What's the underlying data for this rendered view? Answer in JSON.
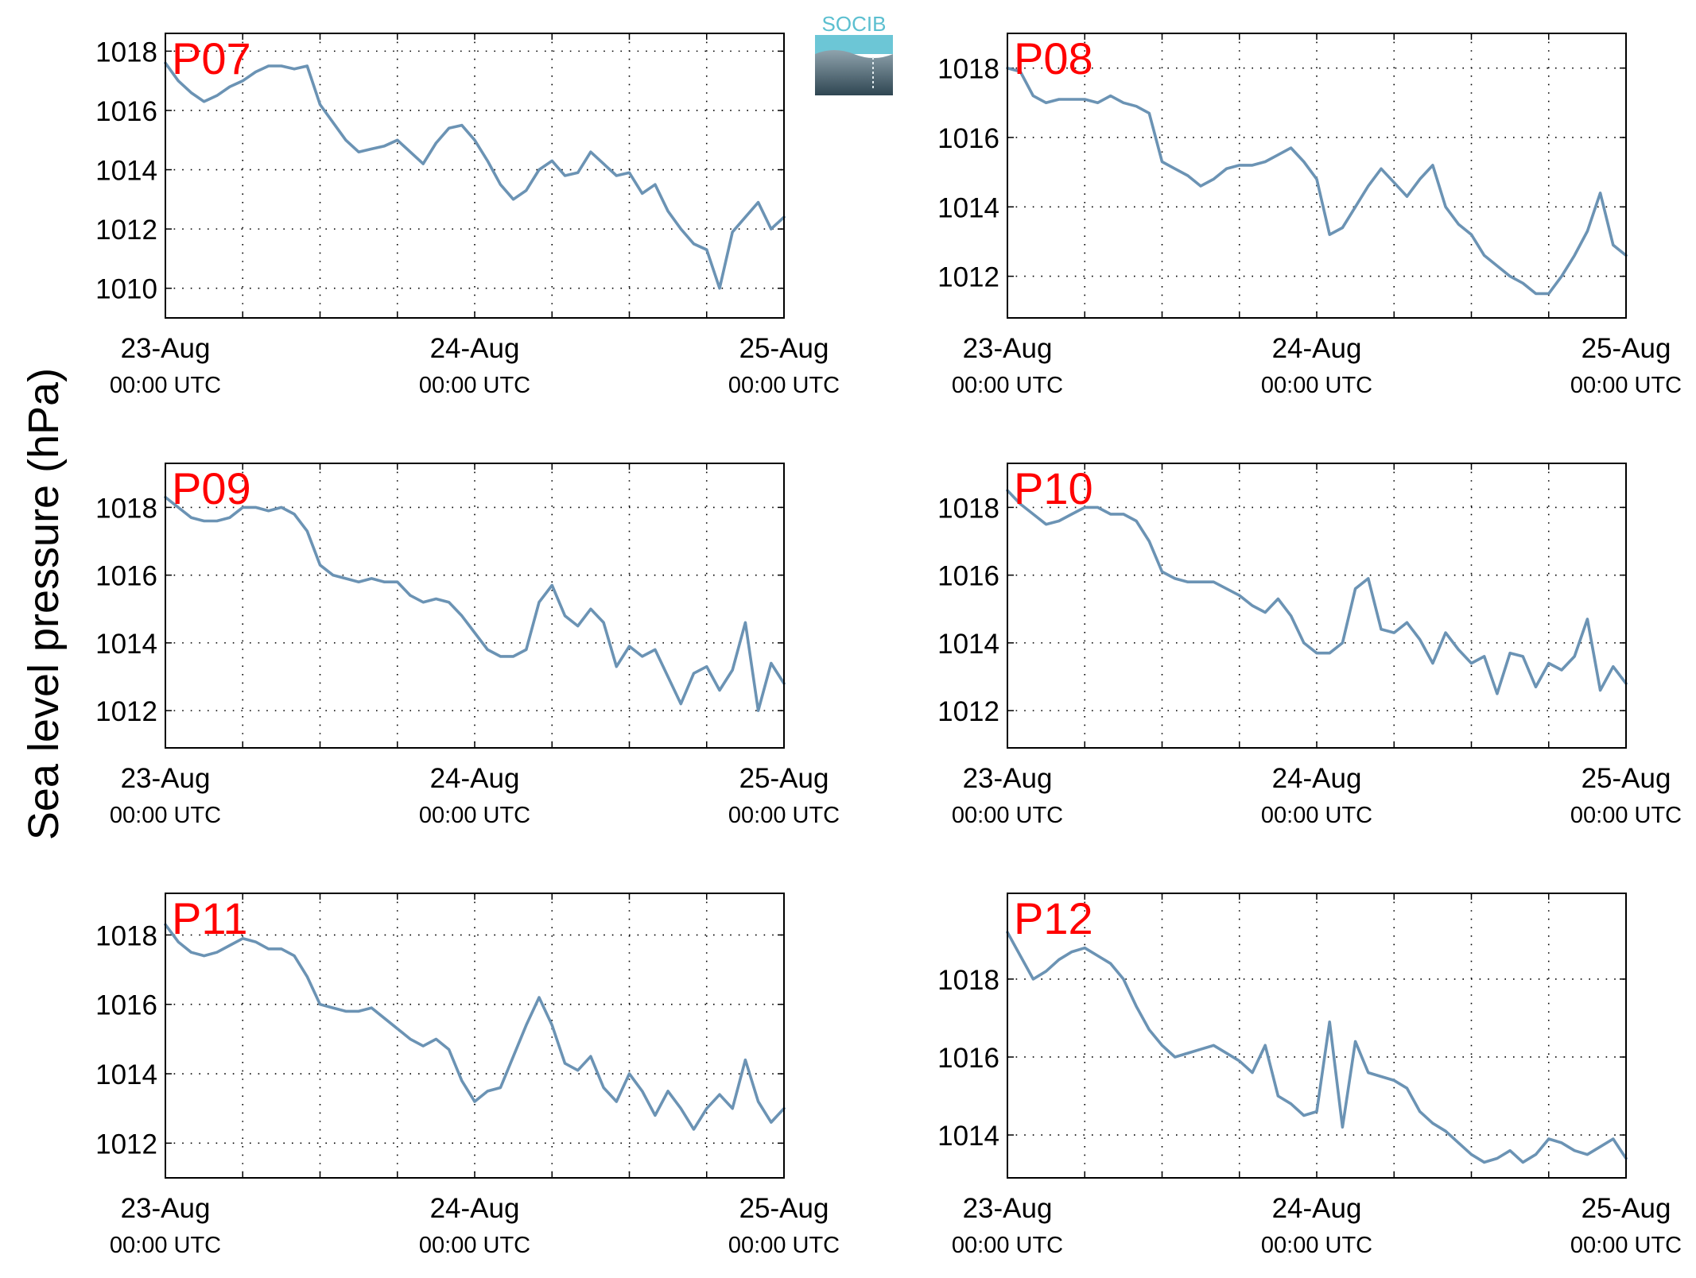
{
  "ylabel": "Sea level pressure (hPa)",
  "logo_text": "SOCIB",
  "colors": {
    "line": "#6b93b4",
    "label": "#ff0000",
    "axis": "#000000",
    "grid": "#000000"
  },
  "chart_data": [
    {
      "type": "line",
      "title": "P07",
      "xticks": [
        {
          "top": "23-Aug",
          "bottom": "00:00 UTC"
        },
        {
          "top": "24-Aug",
          "bottom": "00:00 UTC"
        },
        {
          "top": "25-Aug",
          "bottom": "00:00 UTC"
        }
      ],
      "xlim": [
        "2023-08-23T00:00Z",
        "2023-08-25T00:00Z"
      ],
      "grid_hours": 6,
      "ylim": [
        1009,
        1018.6
      ],
      "yticks": [
        1010,
        1012,
        1014,
        1016,
        1018
      ],
      "x_hours": [
        0,
        1,
        2,
        3,
        4,
        5,
        6,
        7,
        8,
        9,
        10,
        11,
        12,
        13,
        14,
        15,
        16,
        17,
        18,
        19,
        20,
        21,
        22,
        23,
        24,
        25,
        26,
        27,
        28,
        29,
        30,
        31,
        32,
        33,
        34,
        35,
        36,
        37,
        38,
        39,
        40,
        41,
        42,
        43,
        44,
        45,
        46,
        47,
        48
      ],
      "y": [
        1017.6,
        1017.0,
        1016.6,
        1016.3,
        1016.5,
        1016.8,
        1017.0,
        1017.3,
        1017.5,
        1017.5,
        1017.4,
        1017.5,
        1016.2,
        1015.6,
        1015.0,
        1014.6,
        1014.7,
        1014.8,
        1015.0,
        1014.6,
        1014.2,
        1014.9,
        1015.4,
        1015.5,
        1015.0,
        1014.3,
        1013.5,
        1013.0,
        1013.3,
        1014.0,
        1014.3,
        1013.8,
        1013.9,
        1014.6,
        1014.2,
        1013.8,
        1013.9,
        1013.2,
        1013.5,
        1012.6,
        1012.0,
        1011.5,
        1011.3,
        1010.0,
        1011.9,
        1012.4,
        1012.9,
        1012.0,
        1012.4
      ]
    },
    {
      "type": "line",
      "title": "P08",
      "xticks": [
        {
          "top": "23-Aug",
          "bottom": "00:00 UTC"
        },
        {
          "top": "24-Aug",
          "bottom": "00:00 UTC"
        },
        {
          "top": "25-Aug",
          "bottom": "00:00 UTC"
        }
      ],
      "xlim": [
        "2023-08-23T00:00Z",
        "2023-08-25T00:00Z"
      ],
      "grid_hours": 6,
      "ylim": [
        1010.8,
        1019.0
      ],
      "yticks": [
        1012,
        1014,
        1016,
        1018
      ],
      "x_hours": [
        0,
        1,
        2,
        3,
        4,
        5,
        6,
        7,
        8,
        9,
        10,
        11,
        12,
        13,
        14,
        15,
        16,
        17,
        18,
        19,
        20,
        21,
        22,
        23,
        24,
        25,
        26,
        27,
        28,
        29,
        30,
        31,
        32,
        33,
        34,
        35,
        36,
        37,
        38,
        39,
        40,
        41,
        42,
        43,
        44,
        45,
        46,
        47,
        48
      ],
      "y": [
        1018.0,
        1017.9,
        1017.2,
        1017.0,
        1017.1,
        1017.1,
        1017.1,
        1017.0,
        1017.2,
        1017.0,
        1016.9,
        1016.7,
        1015.3,
        1015.1,
        1014.9,
        1014.6,
        1014.8,
        1015.1,
        1015.2,
        1015.2,
        1015.3,
        1015.5,
        1015.7,
        1015.3,
        1014.8,
        1013.2,
        1013.4,
        1014.0,
        1014.6,
        1015.1,
        1014.7,
        1014.3,
        1014.8,
        1015.2,
        1014.0,
        1013.5,
        1013.2,
        1012.6,
        1012.3,
        1012.0,
        1011.8,
        1011.5,
        1011.5,
        1012.0,
        1012.6,
        1013.3,
        1014.4,
        1012.9,
        1012.6
      ]
    },
    {
      "type": "line",
      "title": "P09",
      "xticks": [
        {
          "top": "23-Aug",
          "bottom": "00:00 UTC"
        },
        {
          "top": "24-Aug",
          "bottom": "00:00 UTC"
        },
        {
          "top": "25-Aug",
          "bottom": "00:00 UTC"
        }
      ],
      "xlim": [
        "2023-08-23T00:00Z",
        "2023-08-25T00:00Z"
      ],
      "grid_hours": 6,
      "ylim": [
        1010.9,
        1019.3
      ],
      "yticks": [
        1012,
        1014,
        1016,
        1018
      ],
      "x_hours": [
        0,
        1,
        2,
        3,
        4,
        5,
        6,
        7,
        8,
        9,
        10,
        11,
        12,
        13,
        14,
        15,
        16,
        17,
        18,
        19,
        20,
        21,
        22,
        23,
        24,
        25,
        26,
        27,
        28,
        29,
        30,
        31,
        32,
        33,
        34,
        35,
        36,
        37,
        38,
        39,
        40,
        41,
        42,
        43,
        44,
        45,
        46,
        47,
        48
      ],
      "y": [
        1018.3,
        1018.0,
        1017.7,
        1017.6,
        1017.6,
        1017.7,
        1018.0,
        1018.0,
        1017.9,
        1018.0,
        1017.8,
        1017.3,
        1016.3,
        1016.0,
        1015.9,
        1015.8,
        1015.9,
        1015.8,
        1015.8,
        1015.4,
        1015.2,
        1015.3,
        1015.2,
        1014.8,
        1014.3,
        1013.8,
        1013.6,
        1013.6,
        1013.8,
        1015.2,
        1015.7,
        1014.8,
        1014.5,
        1015.0,
        1014.6,
        1013.3,
        1013.9,
        1013.6,
        1013.8,
        1013.0,
        1012.2,
        1013.1,
        1013.3,
        1012.6,
        1013.2,
        1014.6,
        1012.0,
        1013.4,
        1012.8
      ]
    },
    {
      "type": "line",
      "title": "P10",
      "xticks": [
        {
          "top": "23-Aug",
          "bottom": "00:00 UTC"
        },
        {
          "top": "24-Aug",
          "bottom": "00:00 UTC"
        },
        {
          "top": "25-Aug",
          "bottom": "00:00 UTC"
        }
      ],
      "xlim": [
        "2023-08-23T00:00Z",
        "2023-08-25T00:00Z"
      ],
      "grid_hours": 6,
      "ylim": [
        1010.9,
        1019.3
      ],
      "yticks": [
        1012,
        1014,
        1016,
        1018
      ],
      "x_hours": [
        0,
        1,
        2,
        3,
        4,
        5,
        6,
        7,
        8,
        9,
        10,
        11,
        12,
        13,
        14,
        15,
        16,
        17,
        18,
        19,
        20,
        21,
        22,
        23,
        24,
        25,
        26,
        27,
        28,
        29,
        30,
        31,
        32,
        33,
        34,
        35,
        36,
        37,
        38,
        39,
        40,
        41,
        42,
        43,
        44,
        45,
        46,
        47,
        48
      ],
      "y": [
        1018.5,
        1018.1,
        1017.8,
        1017.5,
        1017.6,
        1017.8,
        1018.0,
        1018.0,
        1017.8,
        1017.8,
        1017.6,
        1017.0,
        1016.1,
        1015.9,
        1015.8,
        1015.8,
        1015.8,
        1015.6,
        1015.4,
        1015.1,
        1014.9,
        1015.3,
        1014.8,
        1014.0,
        1013.7,
        1013.7,
        1014.0,
        1015.6,
        1015.9,
        1014.4,
        1014.3,
        1014.6,
        1014.1,
        1013.4,
        1014.3,
        1013.8,
        1013.4,
        1013.6,
        1012.5,
        1013.7,
        1013.6,
        1012.7,
        1013.4,
        1013.2,
        1013.6,
        1014.7,
        1012.6,
        1013.3,
        1012.8
      ]
    },
    {
      "type": "line",
      "title": "P11",
      "xticks": [
        {
          "top": "23-Aug",
          "bottom": "00:00 UTC"
        },
        {
          "top": "24-Aug",
          "bottom": "00:00 UTC"
        },
        {
          "top": "25-Aug",
          "bottom": "00:00 UTC"
        }
      ],
      "xlim": [
        "2023-08-23T00:00Z",
        "2023-08-25T00:00Z"
      ],
      "grid_hours": 6,
      "ylim": [
        1011.0,
        1019.2
      ],
      "yticks": [
        1012,
        1014,
        1016,
        1018
      ],
      "x_hours": [
        0,
        1,
        2,
        3,
        4,
        5,
        6,
        7,
        8,
        9,
        10,
        11,
        12,
        13,
        14,
        15,
        16,
        17,
        18,
        19,
        20,
        21,
        22,
        23,
        24,
        25,
        26,
        27,
        28,
        29,
        30,
        31,
        32,
        33,
        34,
        35,
        36,
        37,
        38,
        39,
        40,
        41,
        42,
        43,
        44,
        45,
        46,
        47,
        48
      ],
      "y": [
        1018.3,
        1017.8,
        1017.5,
        1017.4,
        1017.5,
        1017.7,
        1017.9,
        1017.8,
        1017.6,
        1017.6,
        1017.4,
        1016.8,
        1016.0,
        1015.9,
        1015.8,
        1015.8,
        1015.9,
        1015.6,
        1015.3,
        1015.0,
        1014.8,
        1015.0,
        1014.7,
        1013.8,
        1013.2,
        1013.5,
        1013.6,
        1014.5,
        1015.4,
        1016.2,
        1015.4,
        1014.3,
        1014.1,
        1014.5,
        1013.6,
        1013.2,
        1014.0,
        1013.5,
        1012.8,
        1013.5,
        1013.0,
        1012.4,
        1013.0,
        1013.4,
        1013.0,
        1014.4,
        1013.2,
        1012.6,
        1013.0
      ]
    },
    {
      "type": "line",
      "title": "P12",
      "xticks": [
        {
          "top": "23-Aug",
          "bottom": "00:00 UTC"
        },
        {
          "top": "24-Aug",
          "bottom": "00:00 UTC"
        },
        {
          "top": "25-Aug",
          "bottom": "00:00 UTC"
        }
      ],
      "xlim": [
        "2023-08-23T00:00Z",
        "2023-08-25T00:00Z"
      ],
      "grid_hours": 6,
      "ylim": [
        1012.9,
        1020.2
      ],
      "yticks": [
        1014,
        1016,
        1018
      ],
      "x_hours": [
        0,
        1,
        2,
        3,
        4,
        5,
        6,
        7,
        8,
        9,
        10,
        11,
        12,
        13,
        14,
        15,
        16,
        17,
        18,
        19,
        20,
        21,
        22,
        23,
        24,
        25,
        26,
        27,
        28,
        29,
        30,
        31,
        32,
        33,
        34,
        35,
        36,
        37,
        38,
        39,
        40,
        41,
        42,
        43,
        44,
        45,
        46,
        47,
        48
      ],
      "y": [
        1019.2,
        1018.6,
        1018.0,
        1018.2,
        1018.5,
        1018.7,
        1018.8,
        1018.6,
        1018.4,
        1018.0,
        1017.3,
        1016.7,
        1016.3,
        1016.0,
        1016.1,
        1016.2,
        1016.3,
        1016.1,
        1015.9,
        1015.6,
        1016.3,
        1015.0,
        1014.8,
        1014.5,
        1014.6,
        1016.9,
        1014.2,
        1016.4,
        1015.6,
        1015.5,
        1015.4,
        1015.2,
        1014.6,
        1014.3,
        1014.1,
        1013.8,
        1013.5,
        1013.3,
        1013.4,
        1013.6,
        1013.3,
        1013.5,
        1013.9,
        1013.8,
        1013.6,
        1013.5,
        1013.7,
        1013.9,
        1013.4
      ]
    }
  ]
}
